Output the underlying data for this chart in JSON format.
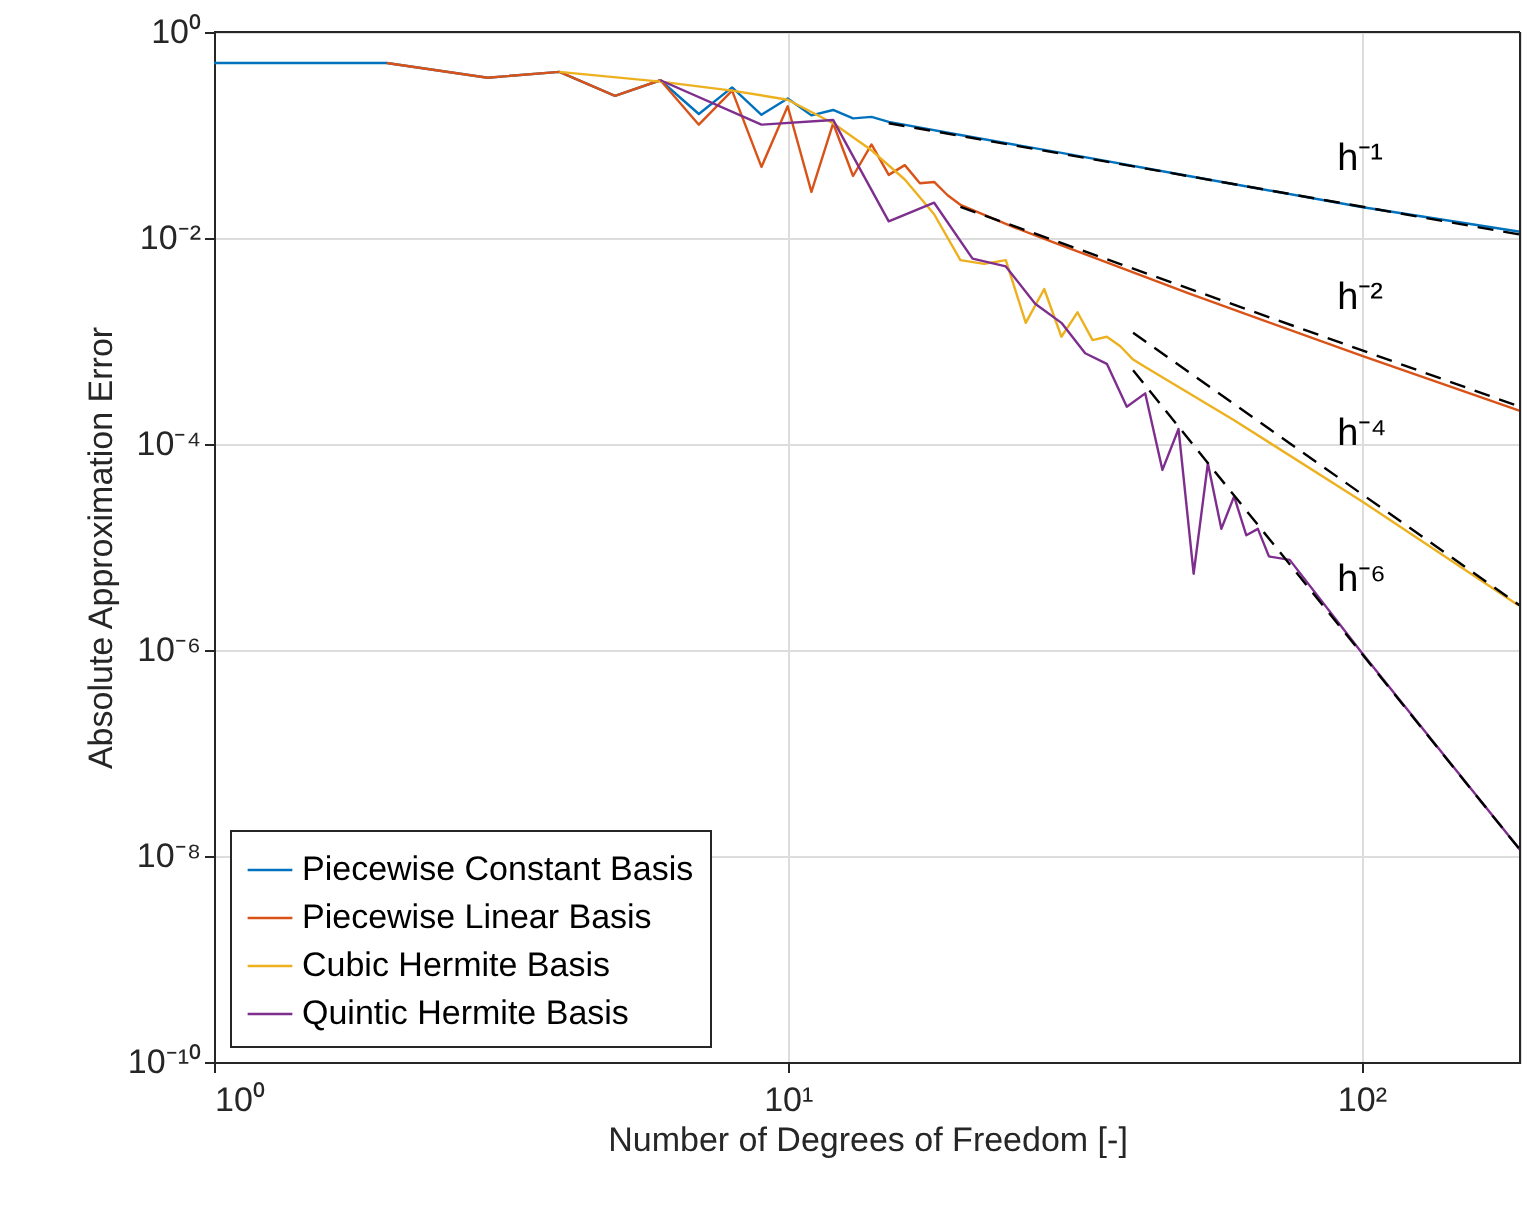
{
  "chart_data": {
    "type": "line",
    "xlabel": "Number of Degrees of Freedom [-]",
    "ylabel": "Absolute Approximation Error",
    "log": "xy",
    "grid": true,
    "legend": "bottom left",
    "marker": "none",
    "xlim": [
      1,
      189
    ],
    "xticks": [
      {
        "value": 1,
        "label": "10⁰"
      },
      {
        "value": 10,
        "label": "10¹"
      },
      {
        "value": 100,
        "label": "10²"
      }
    ],
    "ylim": [
      1e-10,
      1
    ],
    "yticks": [
      {
        "value": 1e-10,
        "label": "10⁻¹⁰"
      },
      {
        "value": 1e-08,
        "label": "10⁻⁸"
      },
      {
        "value": 1e-06,
        "label": "10⁻⁶"
      },
      {
        "value": 0.0001,
        "label": "10⁻⁴"
      },
      {
        "value": 0.01,
        "label": "10⁻²"
      },
      {
        "value": 1,
        "label": "10⁰"
      }
    ],
    "series": [
      {
        "name": "Piecewise Constant Basis",
        "color": "#0072bd",
        "line_style": "solid",
        "x": [
          1,
          2,
          3,
          4,
          5,
          6,
          7,
          8,
          9,
          10,
          11,
          12,
          13,
          14,
          15,
          20,
          30,
          50,
          100,
          189
        ],
        "values": [
          0.5,
          0.5,
          0.36,
          0.41,
          0.24,
          0.34,
          0.16,
          0.29,
          0.157,
          0.226,
          0.155,
          0.175,
          0.145,
          0.15,
          0.134,
          0.1,
          0.067,
          0.04,
          0.02,
          0.0115
        ]
      },
      {
        "name": "Piecewise Linear Basis",
        "color": "#d95319",
        "line_style": "solid",
        "x": [
          2,
          3,
          4,
          5,
          6,
          7,
          8,
          9,
          10,
          11,
          12,
          13,
          14,
          15,
          16,
          17,
          18,
          19,
          20,
          25,
          30,
          50,
          100,
          189
        ],
        "values": [
          0.5,
          0.36,
          0.41,
          0.24,
          0.34,
          0.126,
          0.27,
          0.049,
          0.19,
          0.028,
          0.13,
          0.04,
          0.081,
          0.041,
          0.051,
          0.034,
          0.035,
          0.026,
          0.021,
          0.0125,
          0.0085,
          0.0029,
          0.00072,
          0.00021
        ]
      },
      {
        "name": "Cubic Hermite Basis",
        "color": "#edb120",
        "line_style": "solid",
        "x": [
          4,
          6,
          8,
          10,
          12,
          14,
          16,
          18,
          20,
          22,
          24,
          26,
          28,
          30,
          32,
          34,
          36,
          38,
          40,
          42,
          60,
          100,
          188
        ],
        "values": [
          0.41,
          0.33,
          0.27,
          0.22,
          0.13,
          0.071,
          0.037,
          0.017,
          0.0061,
          0.0056,
          0.0061,
          0.0015,
          0.0032,
          0.0011,
          0.0019,
          0.00102,
          0.0011,
          0.00089,
          0.00066,
          0.00056,
          0.00017,
          2.8e-05,
          2.7e-06
        ]
      },
      {
        "name": "Quintic Hermite Basis",
        "color": "#7e2f8e",
        "line_style": "solid",
        "x": [
          6,
          9,
          12,
          15,
          18,
          21,
          24,
          27,
          30,
          33,
          36,
          39,
          42,
          45,
          48,
          51,
          54,
          57,
          60,
          63,
          66,
          69,
          75,
          100,
          189
        ],
        "values": [
          0.34,
          0.126,
          0.14,
          0.0145,
          0.022,
          0.0063,
          0.0053,
          0.0023,
          0.0015,
          0.00076,
          0.0006,
          0.00023,
          0.00031,
          5.6e-05,
          0.00014,
          5.5e-06,
          6.5e-05,
          1.5e-05,
          3.1e-05,
          1.3e-05,
          1.5e-05,
          8.1e-06,
          7.5e-06,
          9.5e-07,
          1.15e-08
        ]
      },
      {
        "color": "#000000",
        "line_style": "dashed",
        "x": [
          15,
          189
        ],
        "values": [
          0.13,
          0.0108
        ]
      },
      {
        "color": "#000000",
        "line_style": "dashed",
        "x": [
          20,
          189
        ],
        "values": [
          0.02,
          0.00023
        ]
      },
      {
        "color": "#000000",
        "line_style": "dashed",
        "x": [
          40,
          189
        ],
        "values": [
          0.0012,
          2.7e-06
        ]
      },
      {
        "color": "#000000",
        "line_style": "dashed",
        "x": [
          40,
          189
        ],
        "values": [
          0.00052,
          1.15e-08
        ]
      }
    ],
    "annotations": [
      "h⁻¹",
      "h⁻²",
      "h⁻⁴",
      "h⁻⁶"
    ]
  }
}
